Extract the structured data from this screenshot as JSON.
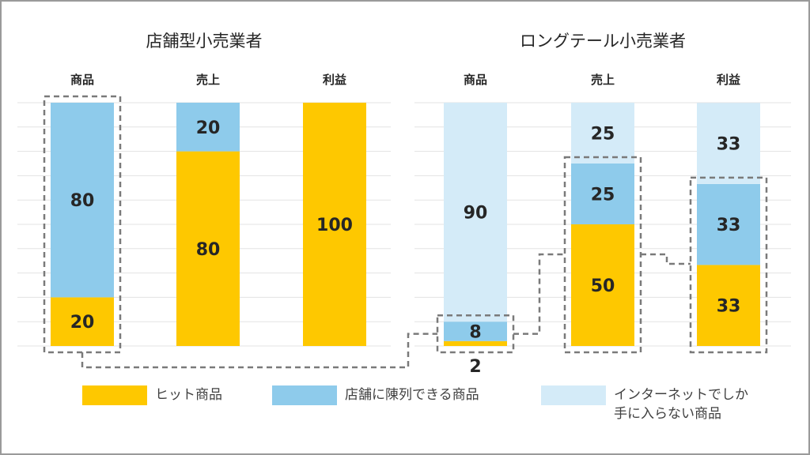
{
  "chart_data": {
    "type": "bar",
    "stacked": true,
    "grid": true,
    "groups": [
      {
        "title": "店舗型小売業者",
        "categories": [
          "商品",
          "売上",
          "利益"
        ],
        "series": [
          {
            "name": "ヒット商品",
            "values": [
              20,
              80,
              100
            ]
          },
          {
            "name": "店舗に陳列できる商品",
            "values": [
              80,
              20,
              0
            ]
          }
        ],
        "labels": [
          [
            "20",
            "80"
          ],
          [
            "80",
            "20"
          ],
          [
            "100",
            ""
          ]
        ]
      },
      {
        "title": "ロングテール小売業者",
        "categories": [
          "商品",
          "売上",
          "利益"
        ],
        "series": [
          {
            "name": "ヒット商品",
            "values": [
              2,
              50,
              33.3
            ]
          },
          {
            "name": "店舗に陳列できる商品",
            "values": [
              8,
              25,
              33.3
            ]
          },
          {
            "name": "インターネットでしか\n手に入らない商品",
            "values": [
              90,
              25,
              33.3
            ]
          }
        ],
        "labels": [
          [
            "2",
            "8",
            "90"
          ],
          [
            "50",
            "25",
            "25"
          ],
          [
            "33",
            "33",
            "33"
          ]
        ]
      }
    ],
    "ylim": [
      0,
      100
    ],
    "legend": "bottom",
    "colors": [
      "#fec800",
      "#8ecbeb",
      "#d4ebf8"
    ]
  },
  "legend": [
    {
      "label": "ヒット商品",
      "color": "#fec800"
    },
    {
      "label": "店舗に陳列できる商品",
      "color": "#8ecbeb"
    },
    {
      "label": "インターネットでしか\n手に入らない商品",
      "color": "#d4ebf8"
    }
  ]
}
